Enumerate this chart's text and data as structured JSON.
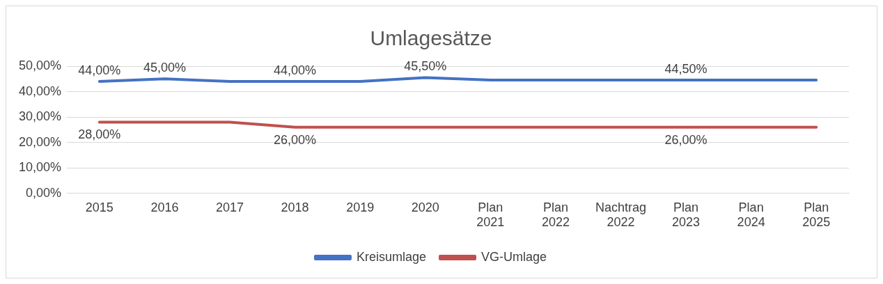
{
  "chart_data": {
    "type": "line",
    "title": "Umlagesätze",
    "categories": [
      "2015",
      "2016",
      "2017",
      "2018",
      "2019",
      "2020",
      "Plan 2021",
      "Plan 2022",
      "Nachtrag 2022",
      "Plan 2023",
      "Plan 2024",
      "Plan 2025"
    ],
    "series": [
      {
        "name": "Kreisumlage",
        "color": "#4472c4",
        "values": [
          44,
          45,
          44,
          44,
          44,
          45.5,
          44.5,
          44.5,
          44.5,
          44.5,
          44.5,
          44.5
        ],
        "value_labels": [
          "44,00%",
          "45,00%",
          null,
          "44,00%",
          null,
          "45,50%",
          null,
          null,
          null,
          "44,50%",
          null,
          null
        ]
      },
      {
        "name": "VG-Umlage",
        "color": "#c0504d",
        "values": [
          28,
          28,
          28,
          26,
          26,
          26,
          26,
          26,
          26,
          26,
          26,
          26
        ],
        "value_labels": [
          "28,00%",
          null,
          null,
          "26,00%",
          null,
          null,
          null,
          null,
          null,
          "26,00%",
          null,
          null
        ]
      }
    ],
    "ylim": [
      0,
      50
    ],
    "yticks": [
      {
        "value": 0,
        "label": "0,00%"
      },
      {
        "value": 10,
        "label": "10,00%"
      },
      {
        "value": 20,
        "label": "20,00%"
      },
      {
        "value": 30,
        "label": "30,00%"
      },
      {
        "value": 40,
        "label": "40,00%"
      },
      {
        "value": 50,
        "label": "50,00%"
      }
    ],
    "grid": "y",
    "legend": "bottom",
    "marker": "none",
    "line_style": "solid"
  }
}
